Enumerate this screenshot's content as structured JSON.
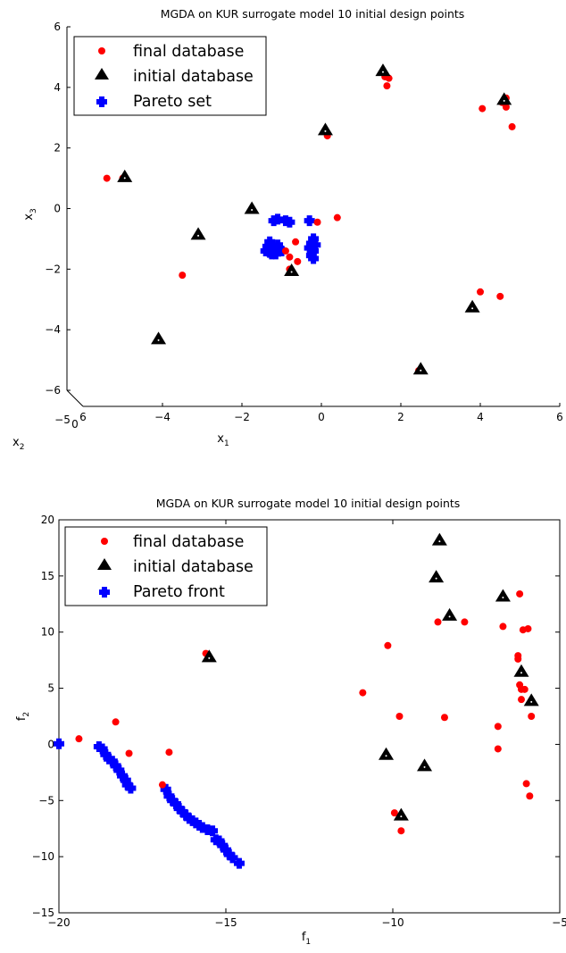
{
  "colors": {
    "final": "#ff0000",
    "initial": "#000000",
    "pareto": "#0000ff"
  },
  "chart_data": [
    {
      "type": "scatter",
      "title": "MGDA on KUR surrogate model 10 initial design points",
      "xlabel": "x",
      "xlabel_sub": "1",
      "ylabel": "x",
      "ylabel_sub": "3",
      "zlabel": "x",
      "zlabel_sub": "2",
      "xlim": [
        -6,
        6
      ],
      "ylim": [
        -6,
        6
      ],
      "xticks": [
        -4,
        -2,
        0,
        2,
        4,
        6
      ],
      "xtick_labels": [
        "−4",
        "−2",
        "0",
        "2",
        "4",
        "6"
      ],
      "yticks": [
        -6,
        -4,
        -2,
        0,
        2,
        4,
        6
      ],
      "ytick_labels": [
        "−6",
        "−4",
        "−2",
        "0",
        "2",
        "4",
        "6"
      ],
      "corner_ticks": [
        "−5",
        "0",
        "6"
      ],
      "legend": [
        "final database",
        "initial database",
        "Pareto set"
      ],
      "series": [
        {
          "name": "final database",
          "marker": "circle",
          "points": [
            [
              -5.4,
              1.0
            ],
            [
              -5.0,
              1.0
            ],
            [
              -4.95,
              1.05
            ],
            [
              -3.5,
              -2.2
            ],
            [
              -0.9,
              -1.4
            ],
            [
              -0.8,
              -1.6
            ],
            [
              -0.65,
              -1.1
            ],
            [
              -0.6,
              -1.75
            ],
            [
              -0.8,
              -2.0
            ],
            [
              -0.1,
              -0.45
            ],
            [
              0.4,
              -0.3
            ],
            [
              0.15,
              2.4
            ],
            [
              1.6,
              4.35
            ],
            [
              1.7,
              4.3
            ],
            [
              1.65,
              4.05
            ],
            [
              2.45,
              -5.35
            ],
            [
              4.0,
              -2.75
            ],
            [
              4.05,
              3.3
            ],
            [
              4.5,
              -2.9
            ],
            [
              4.55,
              3.5
            ],
            [
              4.65,
              3.35
            ],
            [
              4.65,
              3.65
            ],
            [
              4.8,
              2.7
            ]
          ]
        },
        {
          "name": "initial database",
          "marker": "triangle",
          "points": [
            [
              -4.95,
              1.05
            ],
            [
              -4.1,
              -4.3
            ],
            [
              -3.1,
              -0.85
            ],
            [
              -1.75,
              0.0
            ],
            [
              -0.75,
              -2.05
            ],
            [
              0.1,
              2.6
            ],
            [
              1.55,
              4.55
            ],
            [
              2.5,
              -5.3
            ],
            [
              3.8,
              -3.25
            ],
            [
              4.6,
              3.6
            ]
          ]
        },
        {
          "name": "Pareto set",
          "marker": "plus",
          "points": [
            [
              -1.3,
              -1.1
            ],
            [
              -1.35,
              -1.25
            ],
            [
              -1.4,
              -1.4
            ],
            [
              -1.3,
              -1.45
            ],
            [
              -1.2,
              -1.35
            ],
            [
              -1.1,
              -1.2
            ],
            [
              -1.05,
              -1.35
            ],
            [
              -1.25,
              -1.5
            ],
            [
              -1.15,
              -1.5
            ],
            [
              -1.0,
              -1.4
            ],
            [
              -1.2,
              -0.4
            ],
            [
              -1.1,
              -0.35
            ],
            [
              -0.9,
              -0.4
            ],
            [
              -0.8,
              -0.45
            ],
            [
              -0.3,
              -0.4
            ],
            [
              -0.2,
              -1.0
            ],
            [
              -0.25,
              -1.15
            ],
            [
              -0.3,
              -1.3
            ],
            [
              -0.2,
              -1.4
            ],
            [
              -0.25,
              -1.55
            ],
            [
              -0.2,
              -1.65
            ],
            [
              -0.15,
              -1.2
            ]
          ]
        }
      ]
    },
    {
      "type": "scatter",
      "title": "MGDA on KUR surrogate model 10 initial design points",
      "xlabel": "f",
      "xlabel_sub": "1",
      "ylabel": "f",
      "ylabel_sub": "2",
      "xlim": [
        -20,
        -5
      ],
      "ylim": [
        -15,
        20
      ],
      "xticks": [
        -20,
        -15,
        -10,
        -5
      ],
      "xtick_labels": [
        "−20",
        "−15",
        "−10",
        "−5"
      ],
      "yticks": [
        -15,
        -10,
        -5,
        0,
        5,
        10,
        15,
        20
      ],
      "ytick_labels": [
        "−15",
        "−10",
        "−5",
        "0",
        "5",
        "10",
        "15",
        "20"
      ],
      "legend": [
        "final database",
        "initial database",
        "Pareto front"
      ],
      "series": [
        {
          "name": "final database",
          "marker": "circle",
          "points": [
            [
              -19.4,
              0.5
            ],
            [
              -18.3,
              2.0
            ],
            [
              -17.9,
              -0.8
            ],
            [
              -16.9,
              -3.6
            ],
            [
              -16.7,
              -0.7
            ],
            [
              -15.6,
              8.1
            ],
            [
              -10.9,
              4.6
            ],
            [
              -10.15,
              8.8
            ],
            [
              -9.95,
              -6.1
            ],
            [
              -9.8,
              2.5
            ],
            [
              -9.75,
              -7.7
            ],
            [
              -8.7,
              14.8
            ],
            [
              -8.65,
              10.9
            ],
            [
              -8.45,
              2.4
            ],
            [
              -7.85,
              10.9
            ],
            [
              -6.85,
              1.6
            ],
            [
              -6.85,
              -0.4
            ],
            [
              -6.7,
              10.5
            ],
            [
              -6.2,
              13.4
            ],
            [
              -6.25,
              7.9
            ],
            [
              -6.25,
              7.6
            ],
            [
              -6.2,
              5.3
            ],
            [
              -6.15,
              4.9
            ],
            [
              -6.15,
              4.0
            ],
            [
              -6.1,
              10.2
            ],
            [
              -6.05,
              4.9
            ],
            [
              -6.0,
              -3.5
            ],
            [
              -5.95,
              10.3
            ],
            [
              -5.9,
              -4.6
            ],
            [
              -5.85,
              2.5
            ]
          ]
        },
        {
          "name": "initial database",
          "marker": "triangle",
          "points": [
            [
              -15.5,
              7.8
            ],
            [
              -10.2,
              -0.9
            ],
            [
              -9.75,
              -6.3
            ],
            [
              -9.05,
              -1.9
            ],
            [
              -8.7,
              14.9
            ],
            [
              -8.6,
              18.2
            ],
            [
              -8.3,
              11.5
            ],
            [
              -6.7,
              13.2
            ],
            [
              -6.15,
              6.5
            ],
            [
              -5.85,
              3.9
            ]
          ]
        },
        {
          "name": "Pareto front",
          "marker": "plus",
          "points": [
            [
              -20.0,
              0.05
            ],
            [
              -18.8,
              -0.2
            ],
            [
              -18.7,
              -0.4
            ],
            [
              -18.6,
              -0.9
            ],
            [
              -18.5,
              -1.3
            ],
            [
              -18.4,
              -1.5
            ],
            [
              -18.3,
              -1.9
            ],
            [
              -18.2,
              -2.3
            ],
            [
              -18.1,
              -2.8
            ],
            [
              -18.0,
              -3.2
            ],
            [
              -17.95,
              -3.6
            ],
            [
              -17.85,
              -3.9
            ],
            [
              -16.8,
              -4.0
            ],
            [
              -16.7,
              -4.6
            ],
            [
              -16.6,
              -5.0
            ],
            [
              -16.5,
              -5.3
            ],
            [
              -16.4,
              -5.7
            ],
            [
              -16.3,
              -6.0
            ],
            [
              -16.2,
              -6.3
            ],
            [
              -16.1,
              -6.6
            ],
            [
              -16.0,
              -6.8
            ],
            [
              -15.9,
              -7.0
            ],
            [
              -15.8,
              -7.2
            ],
            [
              -15.7,
              -7.4
            ],
            [
              -15.55,
              -7.6
            ],
            [
              -15.4,
              -7.7
            ],
            [
              -15.3,
              -8.5
            ],
            [
              -15.2,
              -8.6
            ],
            [
              -15.1,
              -9.0
            ],
            [
              -15.0,
              -9.4
            ],
            [
              -14.9,
              -9.8
            ],
            [
              -14.8,
              -10.1
            ],
            [
              -14.6,
              -10.6
            ]
          ]
        }
      ]
    }
  ]
}
